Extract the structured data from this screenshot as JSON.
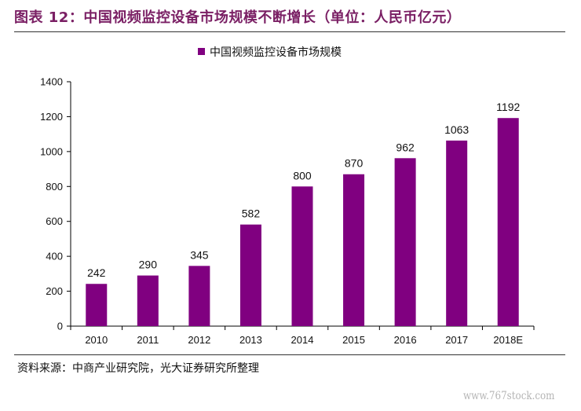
{
  "header": {
    "title": "图表 12：中国视频监控设备市场规模不断增长（单位：人民币亿元）"
  },
  "footer": {
    "source": "资料来源：中商产业研究院，光大证券研究所整理",
    "watermark": "www.767stock.com"
  },
  "colors": {
    "bar": "#800080",
    "title": "#7a1f64"
  },
  "chart_data": {
    "type": "bar",
    "title": "",
    "xlabel": "",
    "ylabel": "",
    "categories": [
      "2010",
      "2011",
      "2012",
      "2013",
      "2014",
      "2015",
      "2016",
      "2017",
      "2018E"
    ],
    "series": [
      {
        "name": "中国视频监控设备市场规模",
        "values": [
          242,
          290,
          345,
          582,
          800,
          870,
          962,
          1063,
          1192
        ]
      }
    ],
    "ylim": [
      0,
      1400
    ],
    "yticks": [
      0,
      200,
      400,
      600,
      800,
      1000,
      1200,
      1400
    ],
    "legend_position": "top-center",
    "grid": false,
    "data_labels": true
  }
}
